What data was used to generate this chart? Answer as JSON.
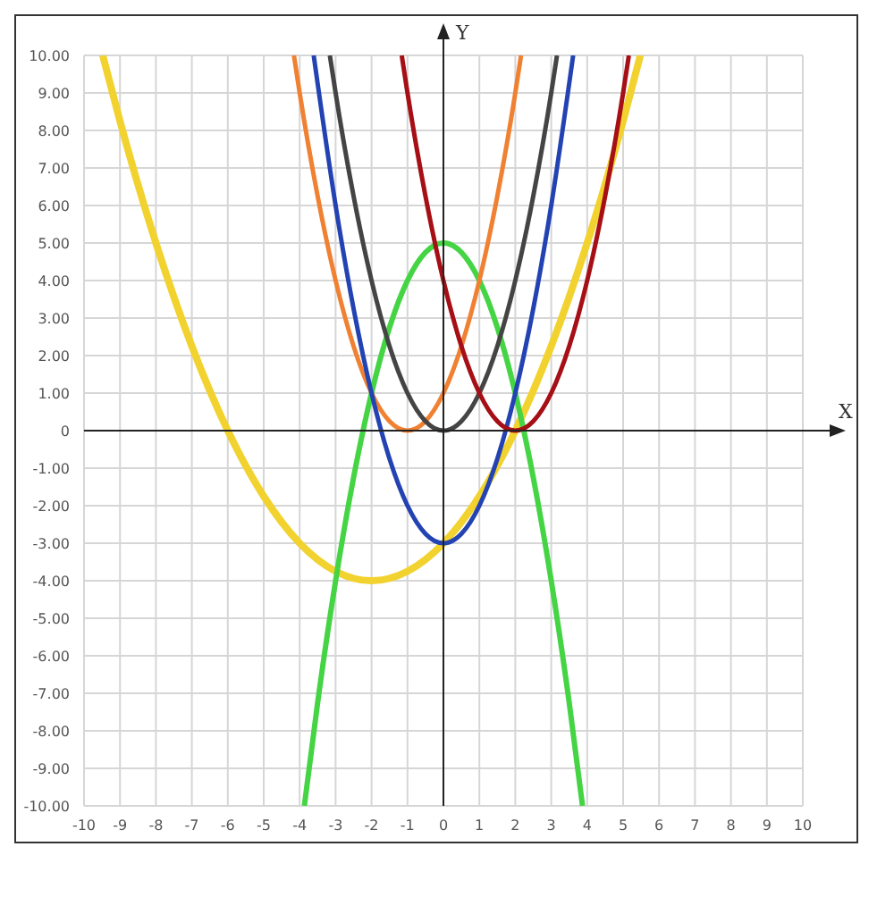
{
  "chart_data": {
    "type": "line",
    "xlabel": "X",
    "ylabel": "Y",
    "xlim": [
      -10,
      10
    ],
    "ylim": [
      -10,
      10
    ],
    "xticks": [
      -10,
      -9,
      -8,
      -7,
      -6,
      -5,
      -4,
      -3,
      -2,
      -1,
      0,
      1,
      2,
      3,
      4,
      5,
      6,
      7,
      8,
      9,
      10
    ],
    "yticks": [
      {
        "value": -10,
        "label": "-10.00"
      },
      {
        "value": -9,
        "label": "-9.00"
      },
      {
        "value": -8,
        "label": "-8.00"
      },
      {
        "value": -7,
        "label": "-7.00"
      },
      {
        "value": -6,
        "label": "-6.00"
      },
      {
        "value": -5,
        "label": "-5.00"
      },
      {
        "value": -4,
        "label": "-4.00"
      },
      {
        "value": -3,
        "label": "-3.00"
      },
      {
        "value": -2,
        "label": "-2.00"
      },
      {
        "value": -1,
        "label": "-1.00"
      },
      0,
      {
        "value": 1,
        "label": "1.00"
      },
      {
        "value": 2,
        "label": "2.00"
      },
      {
        "value": 3,
        "label": "3.00"
      },
      {
        "value": 4,
        "label": "4.00"
      },
      {
        "value": 5,
        "label": "5.00"
      },
      {
        "value": 6,
        "label": "6.00"
      },
      {
        "value": 7,
        "label": "7.00"
      },
      {
        "value": 8,
        "label": "8.00"
      },
      {
        "value": 9,
        "label": "9.00"
      },
      {
        "value": 10,
        "label": "10.00"
      }
    ],
    "grid": true,
    "marker": "none",
    "line_style": "solid",
    "series": [
      {
        "color": "#f2d22e",
        "x": [
          -9.48,
          -9,
          -8,
          -7,
          -6,
          -5,
          -4,
          -3,
          -2,
          -1,
          0,
          1,
          2,
          3,
          4,
          5,
          5.48
        ],
        "values": [
          10,
          8.25,
          5,
          2.25,
          0,
          -1.75,
          -3,
          -3.75,
          -4,
          -3.75,
          -3,
          -1.75,
          0,
          2.25,
          5,
          8.25,
          10
        ]
      },
      {
        "color": "#44d444",
        "x": [
          -3.87,
          -3.5,
          -3,
          -2.5,
          -2,
          -1.5,
          -1,
          -0.5,
          0,
          0.5,
          1,
          1.5,
          2,
          2.5,
          3,
          3.5,
          3.87
        ],
        "values": [
          -10,
          -7.25,
          -4,
          -1.25,
          1,
          2.75,
          4,
          4.75,
          5,
          4.75,
          4,
          2.75,
          1,
          -1.25,
          -4,
          -7.25,
          -10
        ]
      },
      {
        "color": "#f08132",
        "x": [
          -4.16,
          -4,
          -3.5,
          -3,
          -2.5,
          -2,
          -1.5,
          -1,
          -0.5,
          0,
          0.5,
          1,
          1.5,
          2,
          2.16
        ],
        "values": [
          10,
          9,
          6.25,
          4,
          2.25,
          1,
          0.25,
          0,
          0.25,
          1,
          2.25,
          4,
          6.25,
          9,
          10
        ]
      },
      {
        "color": "#2343b3",
        "x": [
          -3.61,
          -3.5,
          -3,
          -2.5,
          -2,
          -1.5,
          -1,
          -0.5,
          0,
          0.5,
          1,
          1.5,
          2,
          2.5,
          3,
          3.5,
          3.61
        ],
        "values": [
          10,
          9.25,
          6,
          3.25,
          1,
          -0.75,
          -2,
          -2.75,
          -3,
          -2.75,
          -2,
          -0.75,
          1,
          3.25,
          6,
          9.25,
          10
        ]
      },
      {
        "color": "#444444",
        "x": [
          -3.16,
          -3,
          -2.5,
          -2,
          -1.5,
          -1,
          -0.5,
          0,
          0.5,
          1,
          1.5,
          2,
          2.5,
          3,
          3.16
        ],
        "values": [
          10,
          9,
          6.25,
          4,
          2.25,
          1,
          0.25,
          0,
          0.25,
          1,
          2.25,
          4,
          6.25,
          9,
          10
        ]
      },
      {
        "color": "#a50f15",
        "x": [
          -1.16,
          -1,
          -0.5,
          0,
          0.5,
          1,
          1.5,
          2,
          2.5,
          3,
          3.5,
          4,
          4.5,
          5,
          5.16
        ],
        "values": [
          10,
          9,
          6.25,
          4,
          2.25,
          1,
          0.25,
          0,
          0.25,
          1,
          2.25,
          4,
          6.25,
          9,
          10
        ]
      }
    ]
  }
}
